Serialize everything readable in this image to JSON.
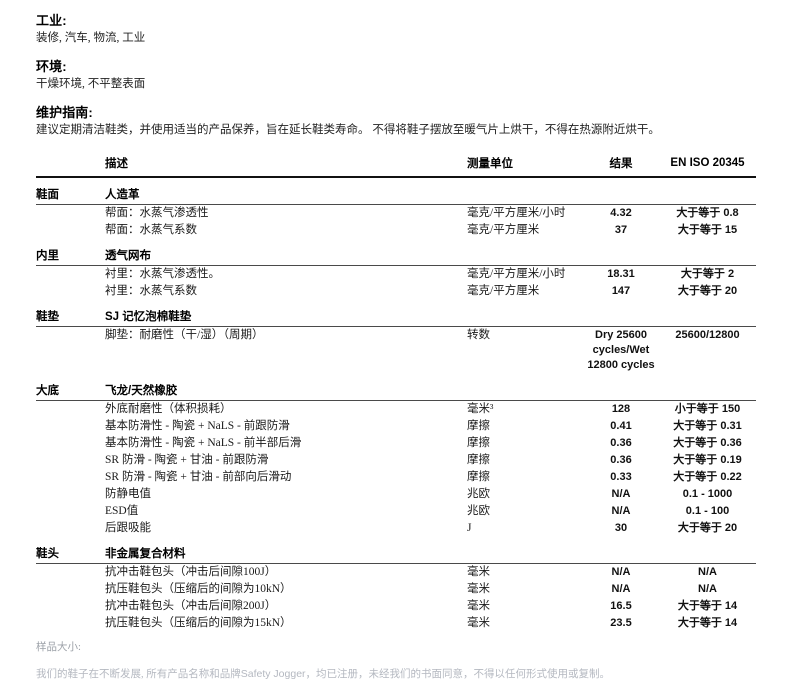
{
  "intro": {
    "industry_heading": "工业:",
    "industry_text": "装修, 汽车, 物流, 工业",
    "environment_heading": "环境:",
    "environment_text": "干燥环境, 不平整表面",
    "maintenance_heading": "维护指南:",
    "maintenance_text": "建议定期清洁鞋类，并使用适当的产品保养，旨在延长鞋类寿命。 不得将鞋子摆放至暖气片上烘干，不得在热源附近烘干。"
  },
  "table": {
    "headers": {
      "description": "描述",
      "unit": "测量单位",
      "result": "结果",
      "standard": "EN ISO 20345"
    },
    "sections": [
      {
        "category": "鞋面",
        "material": "人造革",
        "rows": [
          {
            "description": "帮面：水蒸气渗透性",
            "unit": "毫克/平方厘米/小时",
            "result": "4.32",
            "standard": "大于等于 0.8"
          },
          {
            "description": "帮面：水蒸气系数",
            "unit": "毫克/平方厘米",
            "result": "37",
            "standard": "大于等于 15"
          }
        ]
      },
      {
        "category": "内里",
        "material": "透气网布",
        "rows": [
          {
            "description": "衬里：水蒸气渗透性。",
            "unit": "毫克/平方厘米/小时",
            "result": "18.31",
            "standard": "大于等于 2"
          },
          {
            "description": "衬里：水蒸气系数",
            "unit": "毫克/平方厘米",
            "result": "147",
            "standard": "大于等于 20"
          }
        ]
      },
      {
        "category": "鞋垫",
        "material": "SJ 记忆泡棉鞋垫",
        "rows": [
          {
            "description": "脚垫：耐磨性（干/湿）（周期）",
            "unit": "转数",
            "result": "Dry 25600 cycles/Wet 12800 cycles",
            "standard": "25600/12800"
          }
        ]
      },
      {
        "category": "大底",
        "material": "飞龙/天然橡胶",
        "rows": [
          {
            "description": "外底耐磨性（体积损耗）",
            "unit": "毫米³",
            "result": "128",
            "standard": "小于等于 150"
          },
          {
            "description": "基本防滑性 - 陶瓷 + NaLS - 前跟防滑",
            "unit": "摩擦",
            "result": "0.41",
            "standard": "大于等于 0.31"
          },
          {
            "description": "基本防滑性 - 陶瓷 + NaLS - 前半部后滑",
            "unit": "摩擦",
            "result": "0.36",
            "standard": "大于等于 0.36"
          },
          {
            "description": "SR 防滑 - 陶瓷 + 甘油 - 前跟防滑",
            "unit": "摩擦",
            "result": "0.36",
            "standard": "大于等于 0.19"
          },
          {
            "description": "SR 防滑 - 陶瓷 + 甘油 - 前部向后滑动",
            "unit": "摩擦",
            "result": "0.33",
            "standard": "大于等于 0.22"
          },
          {
            "description": "防静电值",
            "unit": "兆欧",
            "result": "N/A",
            "standard": "0.1 - 1000"
          },
          {
            "description": "ESD值",
            "unit": "兆欧",
            "result": "N/A",
            "standard": "0.1 - 100"
          },
          {
            "description": "后跟吸能",
            "unit": "J",
            "result": "30",
            "standard": "大于等于 20"
          }
        ]
      },
      {
        "category": "鞋头",
        "material": "非金属复合材料",
        "rows": [
          {
            "description": "抗冲击鞋包头（冲击后间隙100J）",
            "unit": "毫米",
            "result": "N/A",
            "standard": "N/A"
          },
          {
            "description": "抗压鞋包头（压缩后的间隙为10kN）",
            "unit": "毫米",
            "result": "N/A",
            "standard": "N/A"
          },
          {
            "description": "抗冲击鞋包头（冲击后间隙200J）",
            "unit": "毫米",
            "result": "16.5",
            "standard": "大于等于 14"
          },
          {
            "description": "抗压鞋包头（压缩后的间隙为15kN）",
            "unit": "毫米",
            "result": "23.5",
            "standard": "大于等于 14"
          }
        ]
      }
    ]
  },
  "footer": {
    "sample_size_label": "样品大小:",
    "disclaimer_prefix": "我们的鞋子在不断发展, 所有产品名称和品牌",
    "brand": "Safety Jogger",
    "disclaimer_suffix": "，均已注册，未经我们的书面同意，不得以任何形式使用或复制。"
  }
}
